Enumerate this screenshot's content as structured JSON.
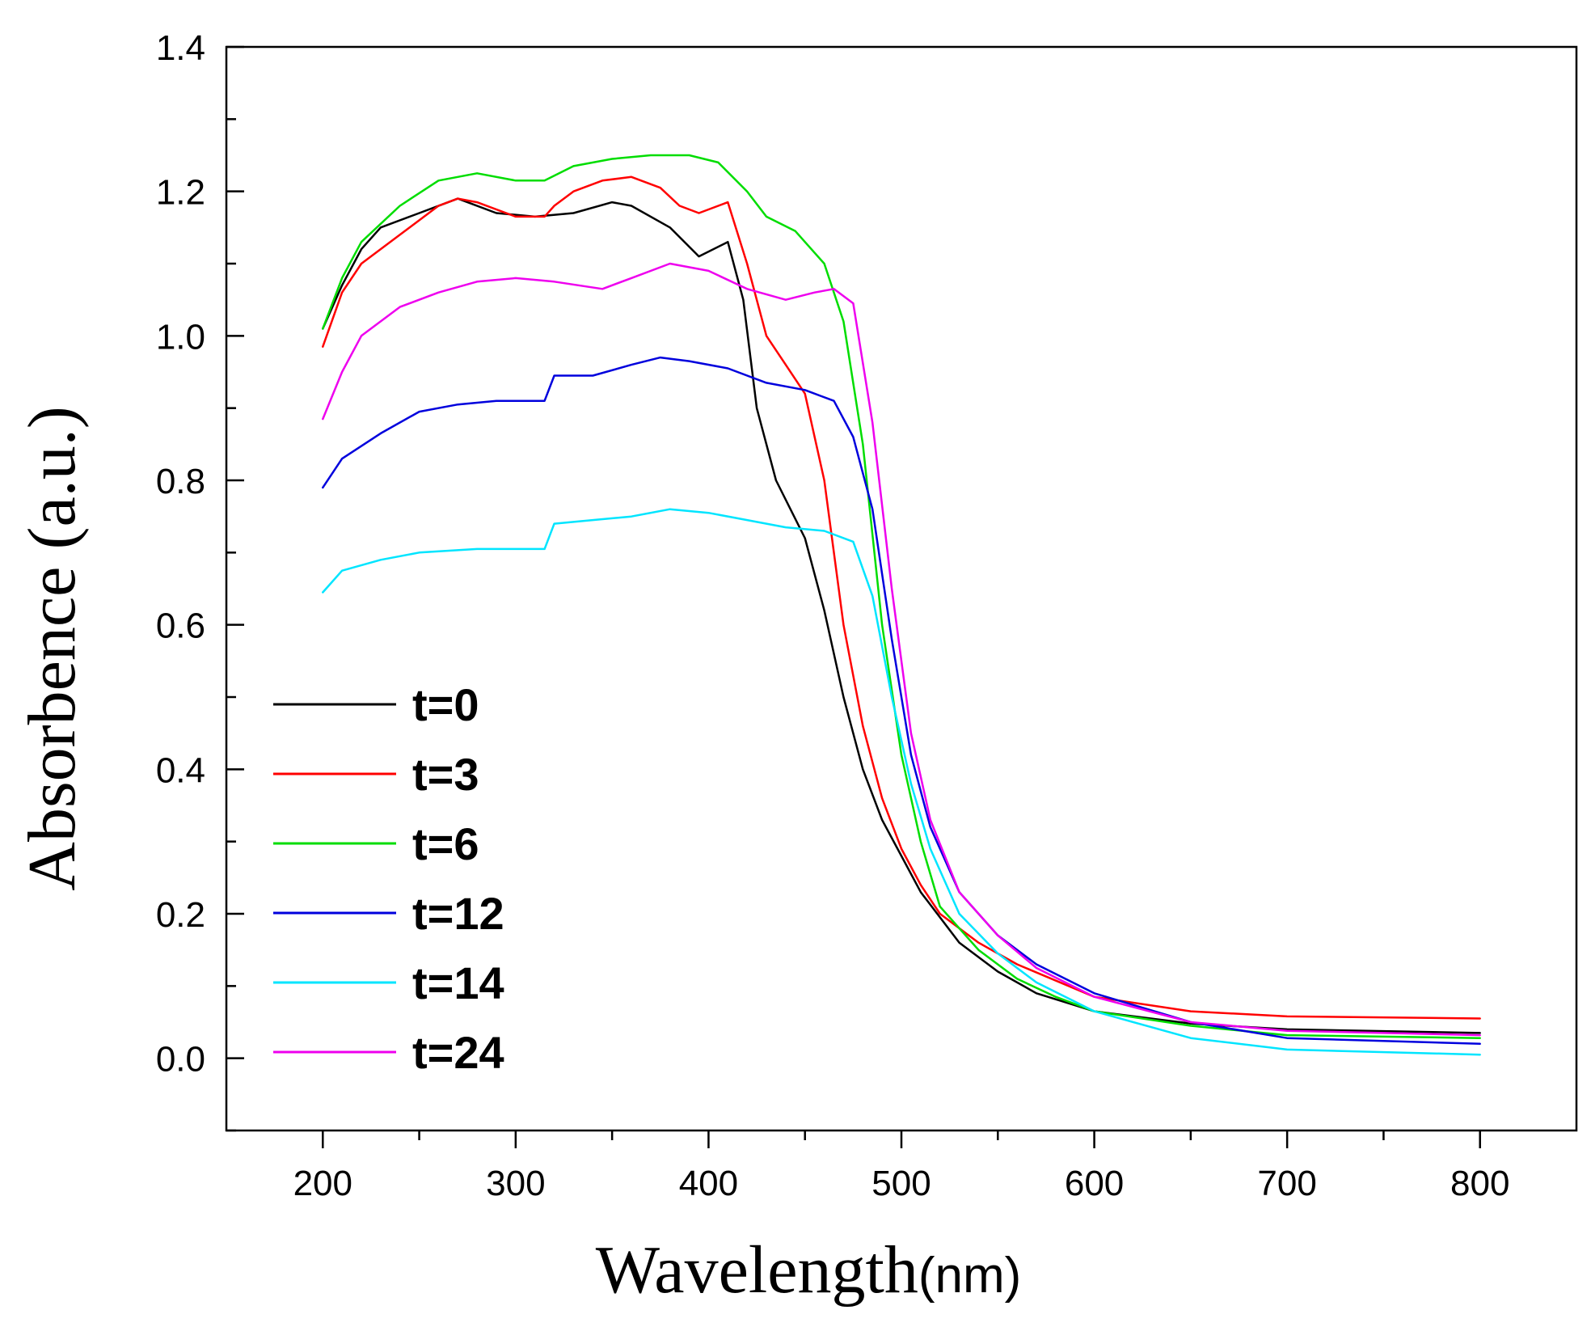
{
  "chart_data": {
    "type": "line",
    "title": "",
    "xlabel": "Wavelength",
    "xlabel_unit": "(nm)",
    "ylabel": "Absorbence (a.u.)",
    "xlim": [
      150,
      850
    ],
    "ylim": [
      -0.1,
      1.4
    ],
    "x_ticks": [
      200,
      300,
      400,
      500,
      600,
      700,
      800
    ],
    "x_tick_labels": [
      "200",
      "300",
      "400",
      "500",
      "600",
      "700",
      "800"
    ],
    "x_minor_ticks": [
      250,
      350,
      450,
      550,
      650,
      750
    ],
    "y_ticks": [
      0.0,
      0.2,
      0.4,
      0.6,
      0.8,
      1.0,
      1.2,
      1.4
    ],
    "y_tick_labels": [
      "0.0",
      "0.2",
      "0.4",
      "0.6",
      "0.8",
      "1.0",
      "1.2",
      "1.4"
    ],
    "y_minor_ticks": [
      -0.1,
      0.1,
      0.3,
      0.5,
      0.7,
      0.9,
      1.1,
      1.3
    ],
    "grid": false,
    "legend_position": "bottom-left",
    "series": [
      {
        "name": "t=0",
        "color": "#000000",
        "points": [
          [
            200,
            1.01
          ],
          [
            210,
            1.07
          ],
          [
            220,
            1.12
          ],
          [
            230,
            1.15
          ],
          [
            250,
            1.17
          ],
          [
            270,
            1.19
          ],
          [
            290,
            1.17
          ],
          [
            310,
            1.165
          ],
          [
            330,
            1.17
          ],
          [
            350,
            1.185
          ],
          [
            360,
            1.18
          ],
          [
            380,
            1.15
          ],
          [
            395,
            1.11
          ],
          [
            410,
            1.13
          ],
          [
            418,
            1.05
          ],
          [
            425,
            0.9
          ],
          [
            435,
            0.8
          ],
          [
            450,
            0.72
          ],
          [
            460,
            0.62
          ],
          [
            470,
            0.5
          ],
          [
            480,
            0.4
          ],
          [
            490,
            0.33
          ],
          [
            500,
            0.28
          ],
          [
            510,
            0.23
          ],
          [
            530,
            0.16
          ],
          [
            550,
            0.12
          ],
          [
            570,
            0.09
          ],
          [
            600,
            0.065
          ],
          [
            650,
            0.048
          ],
          [
            700,
            0.04
          ],
          [
            800,
            0.035
          ]
        ]
      },
      {
        "name": "t=3",
        "color": "#ff0000",
        "points": [
          [
            200,
            0.985
          ],
          [
            210,
            1.06
          ],
          [
            220,
            1.1
          ],
          [
            240,
            1.14
          ],
          [
            260,
            1.18
          ],
          [
            270,
            1.19
          ],
          [
            280,
            1.185
          ],
          [
            300,
            1.165
          ],
          [
            315,
            1.165
          ],
          [
            320,
            1.18
          ],
          [
            330,
            1.2
          ],
          [
            345,
            1.215
          ],
          [
            360,
            1.22
          ],
          [
            375,
            1.205
          ],
          [
            385,
            1.18
          ],
          [
            395,
            1.17
          ],
          [
            410,
            1.185
          ],
          [
            420,
            1.1
          ],
          [
            430,
            1.0
          ],
          [
            440,
            0.96
          ],
          [
            450,
            0.92
          ],
          [
            460,
            0.8
          ],
          [
            470,
            0.6
          ],
          [
            480,
            0.46
          ],
          [
            490,
            0.36
          ],
          [
            500,
            0.29
          ],
          [
            510,
            0.24
          ],
          [
            520,
            0.2
          ],
          [
            540,
            0.16
          ],
          [
            560,
            0.13
          ],
          [
            600,
            0.085
          ],
          [
            650,
            0.065
          ],
          [
            700,
            0.058
          ],
          [
            800,
            0.055
          ]
        ]
      },
      {
        "name": "t=6",
        "color": "#00dd00",
        "points": [
          [
            200,
            1.01
          ],
          [
            210,
            1.08
          ],
          [
            220,
            1.13
          ],
          [
            240,
            1.18
          ],
          [
            260,
            1.215
          ],
          [
            280,
            1.225
          ],
          [
            300,
            1.215
          ],
          [
            315,
            1.215
          ],
          [
            330,
            1.235
          ],
          [
            350,
            1.245
          ],
          [
            370,
            1.25
          ],
          [
            390,
            1.25
          ],
          [
            405,
            1.24
          ],
          [
            420,
            1.2
          ],
          [
            430,
            1.165
          ],
          [
            445,
            1.145
          ],
          [
            460,
            1.1
          ],
          [
            470,
            1.02
          ],
          [
            480,
            0.85
          ],
          [
            490,
            0.6
          ],
          [
            500,
            0.42
          ],
          [
            510,
            0.3
          ],
          [
            520,
            0.21
          ],
          [
            540,
            0.15
          ],
          [
            560,
            0.11
          ],
          [
            580,
            0.085
          ],
          [
            600,
            0.065
          ],
          [
            650,
            0.045
          ],
          [
            700,
            0.032
          ],
          [
            800,
            0.028
          ]
        ]
      },
      {
        "name": "t=12",
        "color": "#0000dd",
        "points": [
          [
            200,
            0.79
          ],
          [
            210,
            0.83
          ],
          [
            230,
            0.865
          ],
          [
            250,
            0.895
          ],
          [
            270,
            0.905
          ],
          [
            290,
            0.91
          ],
          [
            315,
            0.91
          ],
          [
            320,
            0.945
          ],
          [
            340,
            0.945
          ],
          [
            360,
            0.96
          ],
          [
            375,
            0.97
          ],
          [
            390,
            0.965
          ],
          [
            410,
            0.955
          ],
          [
            430,
            0.935
          ],
          [
            450,
            0.925
          ],
          [
            465,
            0.91
          ],
          [
            475,
            0.86
          ],
          [
            485,
            0.76
          ],
          [
            495,
            0.58
          ],
          [
            505,
            0.42
          ],
          [
            515,
            0.32
          ],
          [
            530,
            0.23
          ],
          [
            550,
            0.17
          ],
          [
            570,
            0.13
          ],
          [
            600,
            0.09
          ],
          [
            650,
            0.05
          ],
          [
            700,
            0.028
          ],
          [
            800,
            0.02
          ]
        ]
      },
      {
        "name": "t=14",
        "color": "#00e5ff",
        "points": [
          [
            200,
            0.645
          ],
          [
            210,
            0.675
          ],
          [
            230,
            0.69
          ],
          [
            250,
            0.7
          ],
          [
            280,
            0.705
          ],
          [
            315,
            0.705
          ],
          [
            320,
            0.74
          ],
          [
            340,
            0.745
          ],
          [
            360,
            0.75
          ],
          [
            380,
            0.76
          ],
          [
            400,
            0.755
          ],
          [
            420,
            0.745
          ],
          [
            440,
            0.735
          ],
          [
            460,
            0.73
          ],
          [
            475,
            0.715
          ],
          [
            485,
            0.64
          ],
          [
            495,
            0.5
          ],
          [
            505,
            0.38
          ],
          [
            515,
            0.29
          ],
          [
            530,
            0.2
          ],
          [
            550,
            0.145
          ],
          [
            570,
            0.105
          ],
          [
            600,
            0.065
          ],
          [
            650,
            0.028
          ],
          [
            700,
            0.012
          ],
          [
            800,
            0.005
          ]
        ]
      },
      {
        "name": "t=24",
        "color": "#ee00ee",
        "points": [
          [
            200,
            0.885
          ],
          [
            210,
            0.95
          ],
          [
            220,
            1.0
          ],
          [
            240,
            1.04
          ],
          [
            260,
            1.06
          ],
          [
            280,
            1.075
          ],
          [
            300,
            1.08
          ],
          [
            320,
            1.075
          ],
          [
            345,
            1.065
          ],
          [
            360,
            1.08
          ],
          [
            380,
            1.1
          ],
          [
            400,
            1.09
          ],
          [
            420,
            1.065
          ],
          [
            440,
            1.05
          ],
          [
            455,
            1.06
          ],
          [
            465,
            1.065
          ],
          [
            475,
            1.045
          ],
          [
            485,
            0.88
          ],
          [
            495,
            0.65
          ],
          [
            505,
            0.45
          ],
          [
            515,
            0.33
          ],
          [
            530,
            0.23
          ],
          [
            550,
            0.17
          ],
          [
            570,
            0.125
          ],
          [
            600,
            0.085
          ],
          [
            650,
            0.05
          ],
          [
            700,
            0.038
          ],
          [
            800,
            0.032
          ]
        ]
      }
    ]
  }
}
